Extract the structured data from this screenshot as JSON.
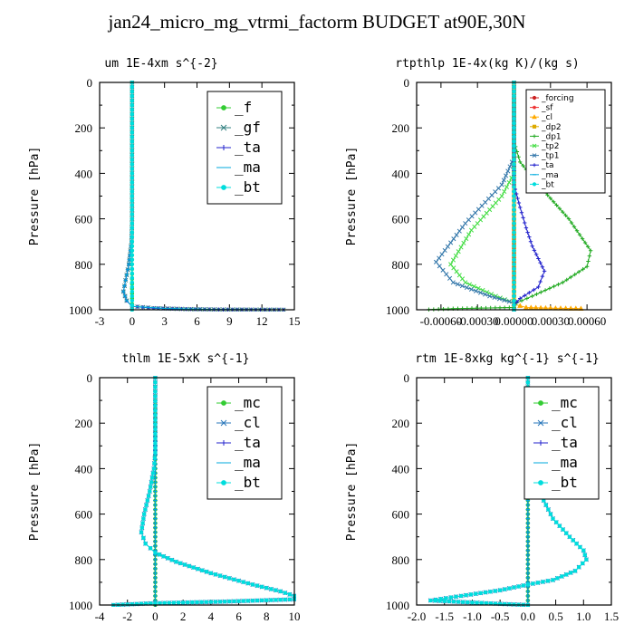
{
  "figure": {
    "title": "jan24_micro_mg_vtrmi_factorm  BUDGET at90E,30N"
  },
  "chart_data": [
    {
      "type": "line",
      "title": "um  1E-4xm s^{-2}",
      "ylabel": "Pressure [hPa]",
      "xlim": [
        -3,
        15
      ],
      "ylim": [
        1000,
        0
      ],
      "xticks": [
        "-3",
        "0",
        "3",
        "6",
        "9",
        "12",
        "15"
      ],
      "yticks": [
        "0",
        "200",
        "400",
        "600",
        "800",
        "1000"
      ],
      "legend_position": "top-right",
      "legend_style": "large",
      "grid": false,
      "series": [
        {
          "name": "_f",
          "color": "#33cc33",
          "marker": "circle",
          "points": [
            [
              0,
              0
            ],
            [
              0,
              200
            ],
            [
              0,
              400
            ],
            [
              0,
              600
            ],
            [
              0,
              800
            ],
            [
              0,
              950
            ],
            [
              0,
              1000
            ]
          ]
        },
        {
          "name": "_gf",
          "color": "#338080",
          "marker": "x",
          "points": [
            [
              0,
              0
            ],
            [
              0,
              400
            ],
            [
              0,
              600
            ],
            [
              -0.05,
              700
            ],
            [
              -0.3,
              800
            ],
            [
              -0.6,
              870
            ],
            [
              -0.8,
              920
            ],
            [
              -0.5,
              960
            ],
            [
              0,
              985
            ],
            [
              2,
              993
            ],
            [
              5,
              997
            ],
            [
              8,
              999
            ],
            [
              14,
              1000
            ]
          ]
        },
        {
          "name": "_ta",
          "color": "#2222cc",
          "marker": "plus",
          "points": [
            [
              0,
              0
            ],
            [
              0,
              400
            ],
            [
              0,
              600
            ],
            [
              -0.05,
              700
            ],
            [
              -0.3,
              800
            ],
            [
              -0.6,
              870
            ],
            [
              -0.8,
              920
            ],
            [
              -0.5,
              960
            ],
            [
              0,
              985
            ],
            [
              2,
              993
            ],
            [
              5,
              997
            ],
            [
              8,
              999
            ],
            [
              14,
              1000
            ]
          ]
        },
        {
          "name": "_ma",
          "color": "#00aadd",
          "marker": "dash",
          "points": [
            [
              0,
              0
            ],
            [
              0,
              400
            ],
            [
              0,
              600
            ],
            [
              -0.05,
              700
            ],
            [
              -0.3,
              800
            ],
            [
              -0.6,
              870
            ],
            [
              -0.8,
              920
            ],
            [
              -0.5,
              960
            ],
            [
              0,
              985
            ],
            [
              3,
              994
            ],
            [
              8,
              999
            ],
            [
              14,
              1000
            ]
          ]
        },
        {
          "name": "_bt",
          "color": "#00dddd",
          "marker": "circle",
          "points": [
            [
              0,
              0
            ],
            [
              0,
              200
            ],
            [
              0,
              400
            ],
            [
              0,
              600
            ],
            [
              0,
              800
            ],
            [
              0,
              980
            ],
            [
              0,
              1000
            ]
          ]
        }
      ]
    },
    {
      "type": "line",
      "title": "rtpthlp  1E-4x(kg K)/(kg s)",
      "ylabel": "Pressure [hPa]",
      "xlim": [
        -0.0008,
        0.0008
      ],
      "ylim": [
        1000,
        0
      ],
      "xticks": [
        "-0.00060",
        "-0.00030",
        "0.00000",
        "0.00030",
        "0.00060"
      ],
      "yticks": [
        "0",
        "200",
        "400",
        "600",
        "800",
        "1000"
      ],
      "legend_position": "top-right",
      "legend_style": "small",
      "grid": false,
      "series": [
        {
          "name": "_forcing",
          "color": "#cc2222",
          "marker": "circle",
          "points": [
            [
              0,
              0
            ],
            [
              0,
              250
            ],
            [
              0,
              500
            ],
            [
              0,
              750
            ],
            [
              0,
              1000
            ]
          ]
        },
        {
          "name": "_sf",
          "color": "#ee3333",
          "marker": "star",
          "points": [
            [
              0,
              0
            ],
            [
              0,
              1000
            ]
          ]
        },
        {
          "name": "_cl",
          "color": "#ffaa00",
          "marker": "triangle",
          "points": [
            [
              0,
              950
            ],
            [
              0,
              975
            ],
            [
              0.0001,
              990
            ],
            [
              0.0003,
              993
            ],
            [
              0.00055,
              995
            ]
          ]
        },
        {
          "name": "_dp2",
          "color": "#ddaa00",
          "marker": "square",
          "points": [
            [
              0,
              0
            ],
            [
              0,
              1000
            ]
          ]
        },
        {
          "name": "_dp1",
          "color": "#22aa22",
          "marker": "plus",
          "points": [
            [
              0,
              0
            ],
            [
              0,
              260
            ],
            [
              5e-05,
              350
            ],
            [
              0.0002,
              450
            ],
            [
              0.00045,
              600
            ],
            [
              0.00063,
              740
            ],
            [
              0.0006,
              810
            ],
            [
              0.0004,
              880
            ],
            [
              0.00015,
              940
            ],
            [
              2e-05,
              970
            ],
            [
              0,
              990
            ],
            [
              -0.0005,
              995
            ],
            [
              -0.0007,
              999
            ]
          ]
        },
        {
          "name": "_tp2",
          "color": "#44dd44",
          "marker": "x",
          "points": [
            [
              0,
              0
            ],
            [
              0,
              400
            ],
            [
              -0.0001,
              500
            ],
            [
              -0.00035,
              650
            ],
            [
              -0.00052,
              800
            ],
            [
              -0.0004,
              880
            ],
            [
              -0.00015,
              940
            ],
            [
              0,
              970
            ],
            [
              0,
              1000
            ]
          ]
        },
        {
          "name": "_tp1",
          "color": "#3377aa",
          "marker": "x",
          "points": [
            [
              0,
              0
            ],
            [
              0,
              330
            ],
            [
              -0.0001,
              450
            ],
            [
              -0.0004,
              620
            ],
            [
              -0.00064,
              790
            ],
            [
              -0.0005,
              880
            ],
            [
              -0.0002,
              940
            ],
            [
              0,
              970
            ],
            [
              0,
              1000
            ]
          ]
        },
        {
          "name": "_ta",
          "color": "#2222cc",
          "marker": "plus",
          "points": [
            [
              0,
              0
            ],
            [
              0,
              450
            ],
            [
              5e-05,
              550
            ],
            [
              0.0001,
              640
            ],
            [
              0.00015,
              720
            ],
            [
              0.00025,
              830
            ],
            [
              0.0002,
              900
            ],
            [
              5e-05,
              950
            ],
            [
              0,
              980
            ],
            [
              0,
              1000
            ]
          ]
        },
        {
          "name": "_ma",
          "color": "#00aadd",
          "marker": "dash",
          "points": [
            [
              0,
              0
            ],
            [
              0,
              1000
            ]
          ]
        },
        {
          "name": "_bt",
          "color": "#00dddd",
          "marker": "circle",
          "points": [
            [
              0,
              0
            ],
            [
              0,
              1000
            ]
          ]
        }
      ]
    },
    {
      "type": "line",
      "title": "thlm  1E-5xK s^{-1}",
      "ylabel": "Pressure [hPa]",
      "xlim": [
        -4,
        10
      ],
      "ylim": [
        1000,
        0
      ],
      "xticks": [
        "-4",
        "-2",
        "0",
        "2",
        "4",
        "6",
        "8",
        "10"
      ],
      "yticks": [
        "0",
        "200",
        "400",
        "600",
        "800",
        "1000"
      ],
      "legend_position": "top-right",
      "legend_style": "large",
      "grid": false,
      "series": [
        {
          "name": "_mc",
          "color": "#33cc33",
          "marker": "circle",
          "points": [
            [
              0,
              0
            ],
            [
              0,
              200
            ],
            [
              0,
              400
            ],
            [
              0,
              600
            ],
            [
              0,
              800
            ],
            [
              0,
              1000
            ]
          ]
        },
        {
          "name": "_cl",
          "color": "#2a77bb",
          "marker": "x",
          "points": [
            [
              0,
              0
            ],
            [
              0,
              330
            ],
            [
              -0.1,
              400
            ],
            [
              -0.4,
              500
            ],
            [
              -0.8,
              600
            ],
            [
              -1,
              680
            ],
            [
              -0.7,
              730
            ],
            [
              0,
              770
            ],
            [
              1.5,
              810
            ],
            [
              4,
              860
            ],
            [
              7,
              910
            ],
            [
              9,
              940
            ],
            [
              10,
              960
            ],
            [
              10,
              975
            ],
            [
              5,
              985
            ],
            [
              0,
              992
            ],
            [
              -3,
              1000
            ]
          ]
        },
        {
          "name": "_ta",
          "color": "#2222cc",
          "marker": "plus",
          "points": [
            [
              0,
              0
            ],
            [
              0,
              1000
            ]
          ]
        },
        {
          "name": "_ma",
          "color": "#00aadd",
          "marker": "dash",
          "points": [
            [
              0,
              0
            ],
            [
              0,
              1000
            ]
          ]
        },
        {
          "name": "_bt",
          "color": "#00dddd",
          "marker": "circle",
          "points": [
            [
              0,
              0
            ],
            [
              0,
              330
            ],
            [
              -0.1,
              400
            ],
            [
              -0.4,
              500
            ],
            [
              -0.8,
              600
            ],
            [
              -1,
              680
            ],
            [
              -0.7,
              730
            ],
            [
              0,
              770
            ],
            [
              1.5,
              810
            ],
            [
              4,
              860
            ],
            [
              7,
              910
            ],
            [
              9,
              940
            ],
            [
              10,
              960
            ],
            [
              10,
              975
            ],
            [
              5,
              985
            ],
            [
              0,
              992
            ],
            [
              -3,
              1000
            ]
          ]
        }
      ]
    },
    {
      "type": "line",
      "title": "rtm  1E-8xkg kg^{-1} s^{-1}",
      "ylabel": "Pressure [hPa]",
      "xlim": [
        -2.0,
        1.5
      ],
      "ylim": [
        1000,
        0
      ],
      "xticks": [
        "-2.0",
        "-1.5",
        "-1.0",
        "-0.5",
        "0.0",
        "0.5",
        "1.0",
        "1.5"
      ],
      "yticks": [
        "0",
        "200",
        "400",
        "600",
        "800",
        "1000"
      ],
      "legend_position": "top-right",
      "legend_style": "large",
      "grid": false,
      "series": [
        {
          "name": "_mc",
          "color": "#33cc33",
          "marker": "circle",
          "points": [
            [
              0,
              0
            ],
            [
              0,
              200
            ],
            [
              0,
              400
            ],
            [
              0,
              600
            ],
            [
              0,
              800
            ],
            [
              0,
              1000
            ]
          ]
        },
        {
          "name": "_cl",
          "color": "#2a77bb",
          "marker": "x",
          "points": [
            [
              0,
              0
            ],
            [
              0,
              150
            ],
            [
              0.02,
              250
            ],
            [
              0.08,
              400
            ],
            [
              0.2,
              500
            ],
            [
              0.45,
              620
            ],
            [
              0.75,
              700
            ],
            [
              1.0,
              760
            ],
            [
              1.05,
              800
            ],
            [
              0.85,
              850
            ],
            [
              0.45,
              890
            ],
            [
              0,
              910
            ],
            [
              -0.5,
              935
            ],
            [
              -1.2,
              960
            ],
            [
              -1.75,
              980
            ],
            [
              -0.5,
              995
            ],
            [
              0,
              1000
            ]
          ]
        },
        {
          "name": "_ta",
          "color": "#2222cc",
          "marker": "plus",
          "points": [
            [
              0,
              0
            ],
            [
              0,
              1000
            ]
          ]
        },
        {
          "name": "_ma",
          "color": "#00aadd",
          "marker": "dash",
          "points": [
            [
              0,
              0
            ],
            [
              0,
              1000
            ]
          ]
        },
        {
          "name": "_bt",
          "color": "#00dddd",
          "marker": "circle",
          "points": [
            [
              0,
              0
            ],
            [
              0,
              150
            ],
            [
              0.02,
              250
            ],
            [
              0.08,
              400
            ],
            [
              0.2,
              500
            ],
            [
              0.45,
              620
            ],
            [
              0.75,
              700
            ],
            [
              1.0,
              760
            ],
            [
              1.05,
              800
            ],
            [
              0.85,
              850
            ],
            [
              0.45,
              890
            ],
            [
              0,
              910
            ],
            [
              -0.5,
              935
            ],
            [
              -1.2,
              960
            ],
            [
              -1.75,
              980
            ],
            [
              -0.5,
              995
            ],
            [
              0,
              1000
            ]
          ]
        }
      ]
    }
  ]
}
